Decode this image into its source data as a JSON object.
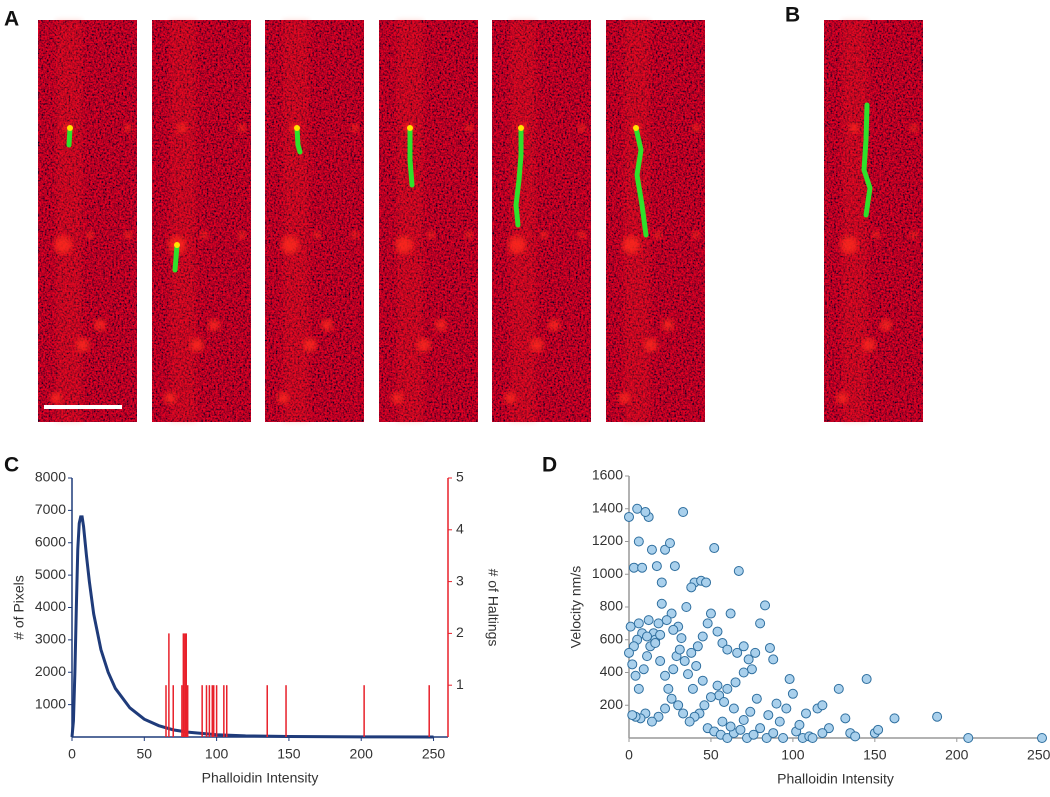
{
  "panel_labels": [
    "A",
    "B",
    "C",
    "D"
  ],
  "chart_data": [
    {
      "type": "combo",
      "xlabel": "Phalloidin Intensity",
      "ylabel": "# of Pixels",
      "y2label": "# of Haltings",
      "xlim": [
        0,
        260
      ],
      "xticks": [
        0,
        50,
        100,
        150,
        200,
        250
      ],
      "ylim": [
        0,
        8000
      ],
      "yticks": [
        1000,
        2000,
        3000,
        4000,
        5000,
        6000,
        7000,
        8000
      ],
      "y2lim": [
        0,
        5
      ],
      "y2ticks": [
        1,
        2,
        3,
        4,
        5
      ],
      "series": [
        {
          "type": "line",
          "color": "#1f3b7a",
          "x": [
            0,
            1,
            2,
            3,
            4,
            5,
            6,
            7,
            8,
            10,
            12,
            15,
            20,
            25,
            30,
            40,
            50,
            60,
            70,
            80,
            100,
            120,
            150,
            200,
            250
          ],
          "values": [
            0,
            500,
            2000,
            4000,
            5800,
            6600,
            6800,
            6800,
            6500,
            5600,
            4800,
            3800,
            2700,
            2000,
            1500,
            900,
            550,
            350,
            220,
            150,
            70,
            35,
            15,
            5,
            0
          ]
        },
        {
          "type": "bar",
          "axis": "y2",
          "color": "#e8202a",
          "x": [
            65,
            67,
            70,
            76,
            77,
            78,
            79,
            80,
            90,
            93,
            95,
            97,
            98,
            100,
            105,
            107,
            135,
            148,
            202,
            247
          ],
          "values": [
            1,
            2,
            1,
            1,
            2,
            2,
            2,
            1,
            1,
            1,
            1,
            1,
            1,
            1,
            1,
            1,
            1,
            1,
            1,
            1
          ]
        }
      ]
    },
    {
      "type": "scatter",
      "xlabel": "Phalloidin Intensity",
      "ylabel": "Velocity nm/s",
      "xlim": [
        0,
        252
      ],
      "xticks": [
        0,
        50,
        100,
        150,
        200,
        250
      ],
      "ylim": [
        0,
        1600
      ],
      "yticks": [
        200,
        400,
        600,
        800,
        1000,
        1200,
        1400,
        1600
      ],
      "series": [
        {
          "color": "#a9d0ec",
          "edge": "#2f6f9f",
          "x": [
            0,
            5,
            3,
            8,
            12,
            10,
            6,
            14,
            17,
            20,
            22,
            25,
            28,
            33,
            40,
            44,
            47,
            52,
            67,
            38,
            35,
            30,
            26,
            20,
            18,
            15,
            12,
            8,
            5,
            3,
            1,
            0,
            2,
            4,
            6,
            9,
            11,
            13,
            16,
            19,
            22,
            24,
            27,
            29,
            31,
            34,
            36,
            39,
            42,
            45,
            48,
            50,
            54,
            57,
            60,
            62,
            66,
            70,
            73,
            77,
            80,
            83,
            86,
            88,
            75,
            70,
            65,
            60,
            55,
            50,
            46,
            43,
            40,
            37,
            33,
            30,
            26,
            22,
            18,
            14,
            10,
            7,
            4,
            2,
            48,
            52,
            56,
            60,
            64,
            68,
            72,
            76,
            80,
            84,
            88,
            92,
            96,
            100,
            98,
            102,
            106,
            110,
            112,
            115,
            118,
            122,
            128,
            132,
            135,
            138,
            145,
            150,
            152,
            162,
            188,
            207,
            252,
            90,
            85,
            78,
            74,
            70,
            64,
            58,
            54,
            45,
            41,
            38,
            32,
            27,
            23,
            19,
            16,
            11,
            6,
            57,
            62,
            94,
            104,
            108,
            118
          ],
          "values": [
            1350,
            1400,
            1040,
            1040,
            1350,
            1380,
            1200,
            1150,
            1050,
            950,
            1150,
            1190,
            1050,
            1380,
            950,
            960,
            950,
            1160,
            1020,
            920,
            800,
            680,
            760,
            820,
            700,
            640,
            720,
            640,
            600,
            560,
            680,
            520,
            450,
            380,
            300,
            420,
            500,
            560,
            600,
            470,
            380,
            300,
            420,
            500,
            540,
            470,
            390,
            300,
            560,
            620,
            700,
            760,
            650,
            580,
            540,
            760,
            520,
            560,
            480,
            520,
            700,
            810,
            550,
            480,
            420,
            400,
            340,
            300,
            260,
            250,
            200,
            150,
            130,
            100,
            150,
            200,
            240,
            180,
            130,
            100,
            150,
            120,
            130,
            140,
            60,
            40,
            20,
            0,
            30,
            50,
            0,
            20,
            60,
            0,
            30,
            100,
            180,
            270,
            360,
            40,
            0,
            10,
            0,
            180,
            200,
            60,
            300,
            120,
            30,
            10,
            360,
            30,
            50,
            120,
            130,
            0,
            0,
            210,
            140,
            240,
            160,
            110,
            180,
            220,
            320,
            350,
            440,
            520,
            610,
            660,
            720,
            630,
            580,
            620,
            700,
            100,
            70,
            0,
            80,
            150,
            30
          ]
        }
      ]
    }
  ]
}
